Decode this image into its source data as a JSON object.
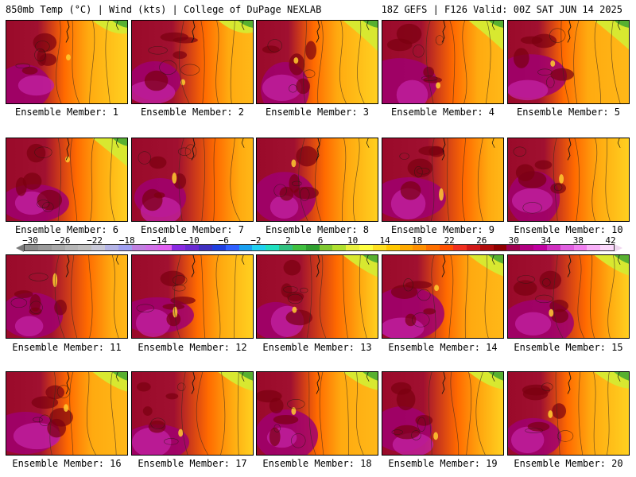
{
  "header": {
    "left": "850mb Temp (°C) | Wind (kts) | College of DuPage NEXLAB",
    "right": "18Z GEFS | F126 Valid: 00Z SAT JUN 14 2025"
  },
  "panels": [
    {
      "label": "Ensemble Member: 1",
      "member": 1
    },
    {
      "label": "Ensemble Member: 2",
      "member": 2
    },
    {
      "label": "Ensemble Member: 3",
      "member": 3
    },
    {
      "label": "Ensemble Member: 4",
      "member": 4
    },
    {
      "label": "Ensemble Member: 5",
      "member": 5
    },
    {
      "label": "Ensemble Member: 6",
      "member": 6
    },
    {
      "label": "Ensemble Member: 7",
      "member": 7
    },
    {
      "label": "Ensemble Member: 8",
      "member": 8
    },
    {
      "label": "Ensemble Member: 9",
      "member": 9
    },
    {
      "label": "Ensemble Member: 10",
      "member": 10
    },
    {
      "label": "Ensemble Member: 11",
      "member": 11
    },
    {
      "label": "Ensemble Member: 12",
      "member": 12
    },
    {
      "label": "Ensemble Member: 13",
      "member": 13
    },
    {
      "label": "Ensemble Member: 14",
      "member": 14
    },
    {
      "label": "Ensemble Member: 15",
      "member": 15
    },
    {
      "label": "Ensemble Member: 16",
      "member": 16
    },
    {
      "label": "Ensemble Member: 17",
      "member": 17
    },
    {
      "label": "Ensemble Member: 18",
      "member": 18
    },
    {
      "label": "Ensemble Member: 19",
      "member": 19
    },
    {
      "label": "Ensemble Member: 20",
      "member": 20
    }
  ],
  "colorbar": {
    "ticks": [
      "−30",
      "−26",
      "−22",
      "−18",
      "−14",
      "−10",
      "−6",
      "−2",
      "2",
      "6",
      "10",
      "14",
      "18",
      "22",
      "26",
      "30",
      "34",
      "38",
      "42"
    ],
    "colors": [
      "#8c8c8c",
      "#9a9a9a",
      "#a8a8a8",
      "#b6b6b6",
      "#bfbfbf",
      "#c8c8d8",
      "#b4b4e6",
      "#a0a0f0",
      "#c080e0",
      "#d070e8",
      "#e060f0",
      "#8a2be2",
      "#6a2bd2",
      "#4030c0",
      "#2040e0",
      "#3060ff",
      "#1aa0f0",
      "#20d0f0",
      "#20e0c0",
      "#30c080",
      "#40c040",
      "#30a030",
      "#80c830",
      "#b0e030",
      "#e8f040",
      "#ffff40",
      "#ffe020",
      "#ffc800",
      "#ffaa00",
      "#ff9000",
      "#ff7000",
      "#ff5000",
      "#f03020",
      "#d01818",
      "#b00c0c",
      "#900000",
      "#a00050",
      "#b00080",
      "#c000a0",
      "#d030c0",
      "#e060e0",
      "#f080f0",
      "#f8b0f8",
      "#fcd8fc"
    ]
  }
}
